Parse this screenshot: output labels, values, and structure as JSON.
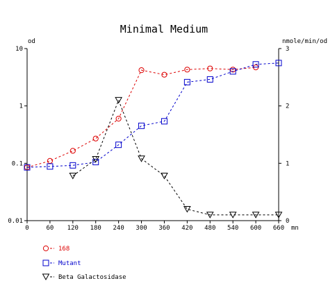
{
  "chart_data": {
    "type": "line",
    "title": "Minimal Medium",
    "xlabel": "mn",
    "ylabel_left": "od",
    "ylabel_right": "nmole/min/od",
    "x_ticks": [
      0,
      60,
      120,
      180,
      240,
      300,
      360,
      420,
      480,
      540,
      600,
      660
    ],
    "xlim": [
      0,
      660
    ],
    "left_axis": {
      "scale": "log",
      "range": [
        0.01,
        10
      ],
      "tick_values": [
        0.01,
        0.1,
        1,
        10
      ],
      "tick_labels": [
        "0.01",
        "0.1",
        "1",
        "10"
      ]
    },
    "right_axis": {
      "scale": "linear",
      "range": [
        0,
        3
      ],
      "tick_values": [
        0,
        1,
        2,
        3
      ],
      "tick_labels": [
        "0",
        "1",
        "2",
        "3"
      ]
    },
    "grid": false,
    "legend_position": "bottom-left",
    "series": [
      {
        "name": "168",
        "axis": "left",
        "marker": "circle",
        "color": "#dd0000",
        "points": [
          {
            "x": 0,
            "y": 0.085
          },
          {
            "x": 60,
            "y": 0.11
          },
          {
            "x": 120,
            "y": 0.165
          },
          {
            "x": 180,
            "y": 0.27
          },
          {
            "x": 240,
            "y": 0.6
          },
          {
            "x": 300,
            "y": 4.2
          },
          {
            "x": 360,
            "y": 3.5
          },
          {
            "x": 420,
            "y": 4.3
          },
          {
            "x": 480,
            "y": 4.5
          },
          {
            "x": 540,
            "y": 4.3
          },
          {
            "x": 600,
            "y": 4.7
          }
        ]
      },
      {
        "name": "Mutant",
        "axis": "left",
        "marker": "square",
        "color": "#0000cc",
        "points": [
          {
            "x": 0,
            "y": 0.085
          },
          {
            "x": 60,
            "y": 0.088
          },
          {
            "x": 120,
            "y": 0.092
          },
          {
            "x": 180,
            "y": 0.105
          },
          {
            "x": 240,
            "y": 0.21
          },
          {
            "x": 300,
            "y": 0.45
          },
          {
            "x": 360,
            "y": 0.54
          },
          {
            "x": 420,
            "y": 2.6
          },
          {
            "x": 480,
            "y": 2.9
          },
          {
            "x": 540,
            "y": 4.0
          },
          {
            "x": 600,
            "y": 5.3
          },
          {
            "x": 660,
            "y": 5.6
          }
        ]
      },
      {
        "name": "Beta Galactosidase",
        "axis": "right",
        "marker": "triangle-down",
        "color": "#000000",
        "points": [
          {
            "x": 120,
            "y": 0.78
          },
          {
            "x": 180,
            "y": 1.07
          },
          {
            "x": 240,
            "y": 2.1
          },
          {
            "x": 300,
            "y": 1.08
          },
          {
            "x": 360,
            "y": 0.78
          },
          {
            "x": 420,
            "y": 0.2
          },
          {
            "x": 480,
            "y": 0.1
          },
          {
            "x": 540,
            "y": 0.1
          },
          {
            "x": 600,
            "y": 0.1
          },
          {
            "x": 660,
            "y": 0.1
          }
        ]
      }
    ]
  }
}
